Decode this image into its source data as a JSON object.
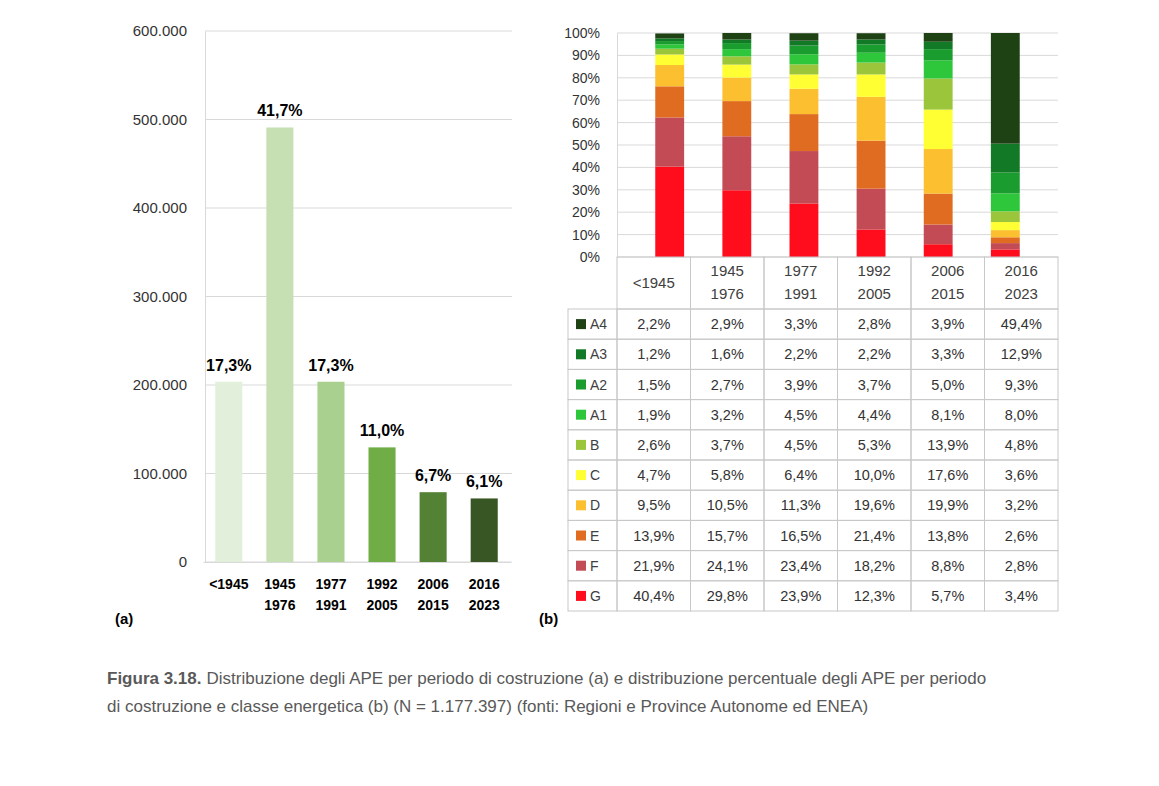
{
  "chart_data": [
    {
      "type": "bar",
      "label": "(a)",
      "categories": [
        "<1945",
        "1945\n1976",
        "1977\n1991",
        "1992\n2005",
        "2006\n2015",
        "2016\n2023"
      ],
      "values": [
        203690,
        490975,
        203690,
        129514,
        78886,
        71821
      ],
      "annotations": [
        "17,3%",
        "41,7%",
        "17,3%",
        "11,0%",
        "6,7%",
        "6,1%"
      ],
      "colors": [
        "#e2efda",
        "#c6e0b4",
        "#a9d08e",
        "#70ad47",
        "#548235",
        "#375623"
      ],
      "ylim": [
        0,
        600000
      ],
      "yticks": [
        0,
        {
          "value": 100000,
          "label": "100.000"
        },
        {
          "value": 200000,
          "label": "200.000"
        },
        {
          "value": 300000,
          "label": "300.000"
        },
        {
          "value": 400000,
          "label": "400.000"
        },
        {
          "value": 500000,
          "label": "500.000"
        },
        {
          "value": 600000,
          "label": "600.000"
        }
      ],
      "grid": true
    },
    {
      "type": "bar",
      "label": "(b)",
      "stacked": true,
      "grid": true,
      "categories": [
        "<1945",
        "1945\n1976",
        "1977\n1991",
        "1992\n2005",
        "2006\n2015",
        "2016\n2023"
      ],
      "ylim": [
        0,
        100
      ],
      "yticks": [
        {
          "value": 0,
          "label": "0%"
        },
        {
          "value": 10,
          "label": "10%"
        },
        {
          "value": 20,
          "label": "20%"
        },
        {
          "value": 30,
          "label": "30%"
        },
        {
          "value": 40,
          "label": "40%"
        },
        {
          "value": 50,
          "label": "50%"
        },
        {
          "value": 60,
          "label": "60%"
        },
        {
          "value": 70,
          "label": "70%"
        },
        {
          "value": 80,
          "label": "80%"
        },
        {
          "value": 90,
          "label": "90%"
        },
        {
          "value": 100,
          "label": "100%"
        }
      ],
      "series": [
        {
          "name": "A4",
          "color": "#1f4215",
          "values": [
            2.2,
            2.9,
            3.3,
            2.8,
            3.9,
            49.4
          ],
          "value_labels": [
            "2,2%",
            "2,9%",
            "3,3%",
            "2,8%",
            "3,9%",
            "49,4%"
          ]
        },
        {
          "name": "A3",
          "color": "#127a26",
          "values": [
            1.2,
            1.6,
            2.2,
            2.2,
            3.3,
            12.9
          ],
          "value_labels": [
            "1,2%",
            "1,6%",
            "2,2%",
            "2,2%",
            "3,3%",
            "12,9%"
          ]
        },
        {
          "name": "A2",
          "color": "#1a9c2e",
          "values": [
            1.5,
            2.7,
            3.9,
            3.7,
            5.0,
            9.3
          ],
          "value_labels": [
            "1,5%",
            "2,7%",
            "3,9%",
            "3,7%",
            "5,0%",
            "9,3%"
          ]
        },
        {
          "name": "A1",
          "color": "#2ec73c",
          "values": [
            1.9,
            3.2,
            4.5,
            4.4,
            8.1,
            8.0
          ],
          "value_labels": [
            "1,9%",
            "3,2%",
            "4,5%",
            "4,4%",
            "8,1%",
            "8,0%"
          ]
        },
        {
          "name": "B",
          "color": "#9bc63c",
          "values": [
            2.6,
            3.7,
            4.5,
            5.3,
            13.9,
            4.8
          ],
          "value_labels": [
            "2,6%",
            "3,7%",
            "4,5%",
            "5,3%",
            "13,9%",
            "4,8%"
          ]
        },
        {
          "name": "C",
          "color": "#ffff33",
          "values": [
            4.7,
            5.8,
            6.4,
            10.0,
            17.6,
            3.6
          ],
          "value_labels": [
            "4,7%",
            "5,8%",
            "6,4%",
            "10,0%",
            "17,6%",
            "3,6%"
          ]
        },
        {
          "name": "D",
          "color": "#fbbf2f",
          "values": [
            9.5,
            10.5,
            11.3,
            19.6,
            19.9,
            3.2
          ],
          "value_labels": [
            "9,5%",
            "10,5%",
            "11,3%",
            "19,6%",
            "19,9%",
            "3,2%"
          ]
        },
        {
          "name": "E",
          "color": "#e06c22",
          "values": [
            13.9,
            15.7,
            16.5,
            21.4,
            13.8,
            2.6
          ],
          "value_labels": [
            "13,9%",
            "15,7%",
            "16,5%",
            "21,4%",
            "13,8%",
            "2,6%"
          ]
        },
        {
          "name": "F",
          "color": "#c24b55",
          "values": [
            21.9,
            24.1,
            23.4,
            18.2,
            8.8,
            2.8
          ],
          "value_labels": [
            "21,9%",
            "24,1%",
            "23,4%",
            "18,2%",
            "8,8%",
            "2,8%"
          ]
        },
        {
          "name": "G",
          "color": "#ff0d1d",
          "values": [
            40.4,
            29.8,
            23.9,
            12.3,
            5.7,
            3.4
          ],
          "value_labels": [
            "40,4%",
            "29,8%",
            "23,9%",
            "12,3%",
            "5,7%",
            "3,4%"
          ]
        }
      ]
    }
  ],
  "caption": {
    "label": "Figura 3.18.",
    "text_lines": [
      "Distribuzione degli APE per periodo di costruzione (a) e distribuzione percentuale degli APE per periodo",
      "di costruzione e classe energetica (b) (N = 1.177.397) (fonti: Regioni e Province Autonome ed ENEA)"
    ]
  }
}
